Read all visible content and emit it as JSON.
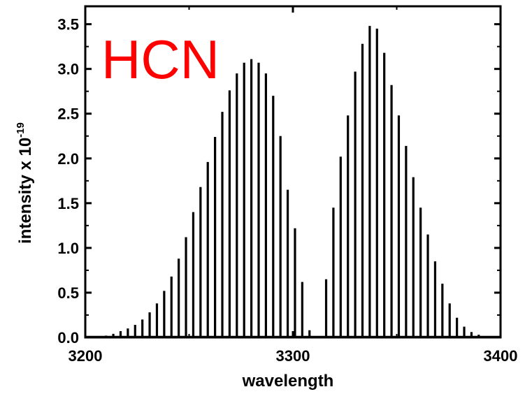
{
  "chart_data": {
    "type": "line",
    "annotation": "HCN",
    "annotation_color": "#ff0000",
    "xlabel": "wavelength",
    "ylabel_main": "intensity x 10",
    "ylabel_exponent": "-19",
    "xlim": [
      3200,
      3400
    ],
    "ylim": [
      0.0,
      3.7
    ],
    "x_ticks": [
      "3200",
      "3300",
      "3400"
    ],
    "y_ticks": [
      "0.0",
      "0.5",
      "1.0",
      "1.5",
      "2.0",
      "2.5",
      "3.0",
      "3.5"
    ],
    "grid": false,
    "line_color": "#000000",
    "series": [
      {
        "x": [
          3210,
          3213.5,
          3217,
          3220.5,
          3224,
          3227.5,
          3231,
          3234.5,
          3238,
          3241.5,
          3245,
          3248.5,
          3252,
          3255.5,
          3259,
          3262.5,
          3266,
          3269.5,
          3273,
          3276.5,
          3280,
          3283.5,
          3287,
          3290.5,
          3294,
          3297.5,
          3301,
          3304.5,
          3308
        ],
        "values": [
          0.02,
          0.04,
          0.07,
          0.1,
          0.14,
          0.2,
          0.28,
          0.38,
          0.52,
          0.68,
          0.88,
          1.12,
          1.4,
          1.68,
          1.96,
          2.24,
          2.52,
          2.76,
          2.95,
          3.07,
          3.11,
          3.07,
          2.95,
          2.7,
          2.25,
          1.65,
          1.22,
          0.62,
          0.08
        ]
      },
      {
        "x": [
          3316,
          3319.5,
          3323,
          3326.5,
          3330,
          3333.5,
          3337,
          3340.5,
          3344,
          3347.5,
          3351,
          3354.5,
          3358,
          3361.5,
          3365,
          3368.5,
          3372,
          3375.5,
          3379,
          3382.5,
          3386,
          3389.5,
          3393
        ],
        "values": [
          0.65,
          1.45,
          2.02,
          2.48,
          2.97,
          3.28,
          3.48,
          3.45,
          3.18,
          2.82,
          2.48,
          2.14,
          1.79,
          1.45,
          1.15,
          0.85,
          0.6,
          0.38,
          0.22,
          0.12,
          0.06,
          0.03,
          0.01
        ]
      }
    ]
  }
}
